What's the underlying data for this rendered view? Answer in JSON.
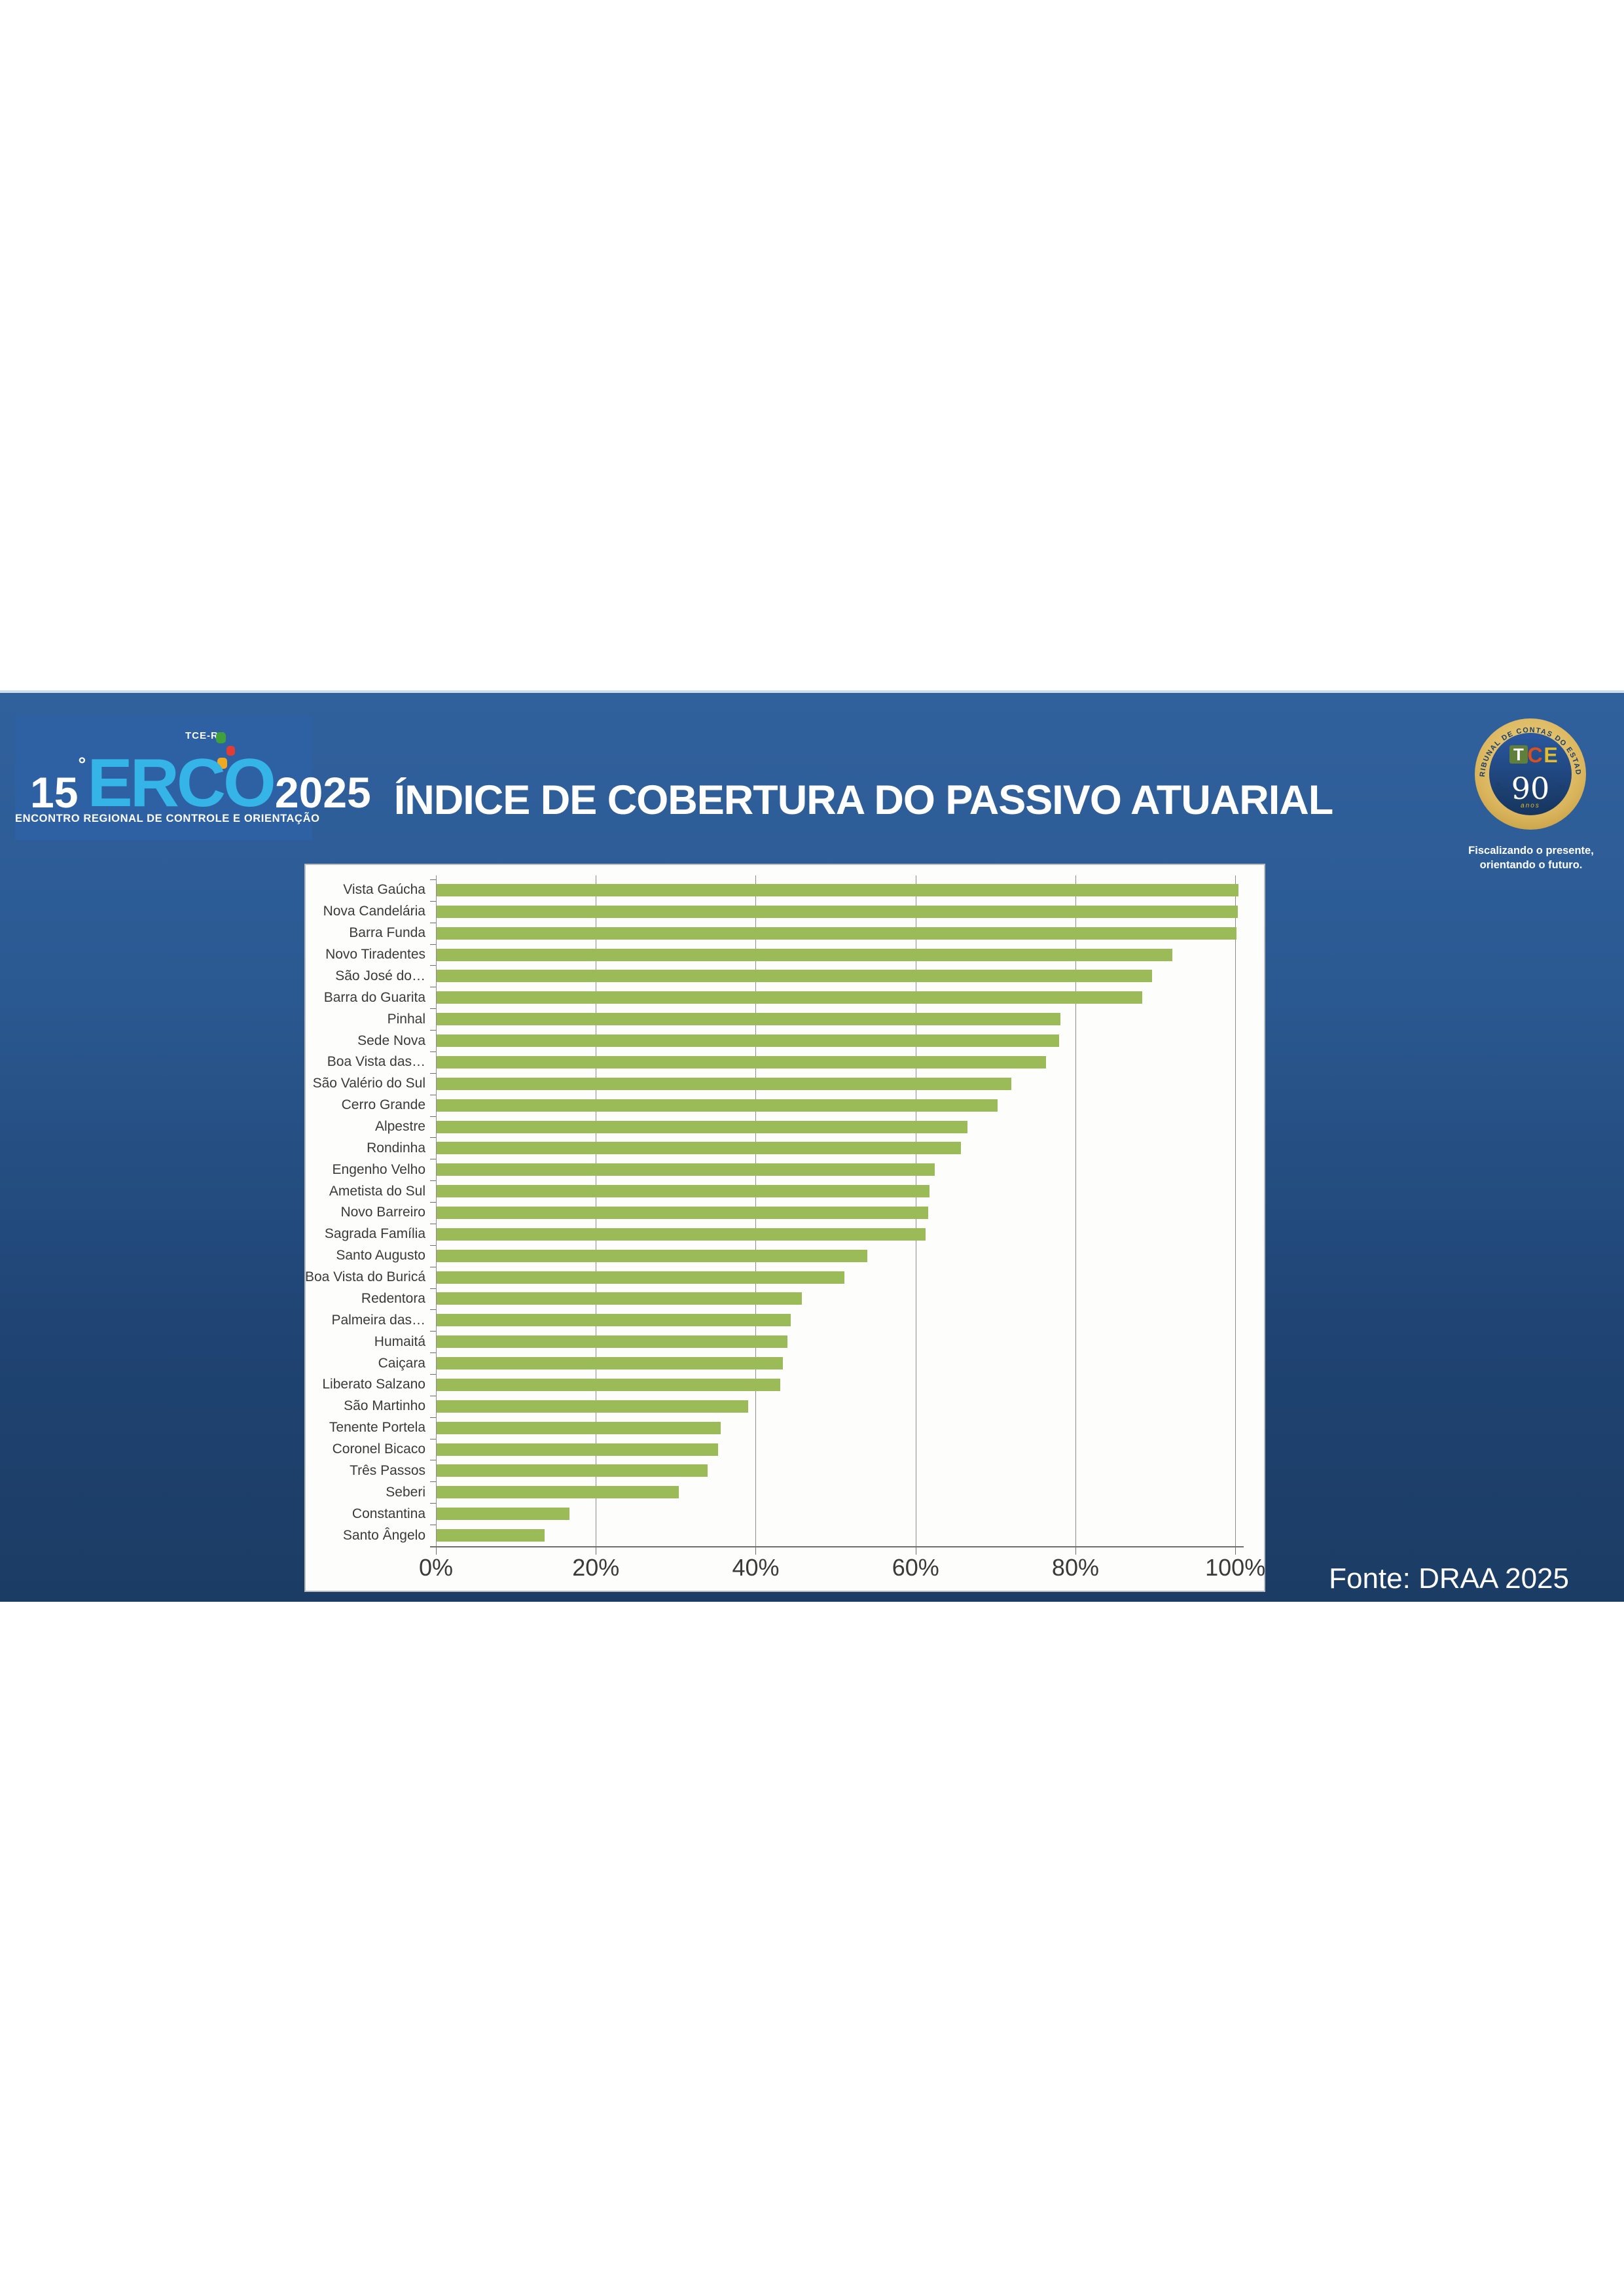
{
  "slide": {
    "title": "ÍNDICE DE COBERTURA DO PASSIVO ATUARIAL",
    "source_note": "Fonte: DRAA 2025",
    "colors": {
      "band_top": "#31619d",
      "band_bottom": "#1b3c64",
      "title_text": "#ffffff"
    }
  },
  "erco_logo": {
    "edition": "15",
    "degree_symbol": "°",
    "acronym": "ERCO",
    "year": "2025",
    "org": "TCE-RS",
    "tagline": "ENCONTRO REGIONAL DE CONTROLE E ORIENTAÇÃO",
    "colors": {
      "acronym": "#35b4e8",
      "box": "#2e61a3",
      "light_green": "#3fa03c",
      "light_red": "#e23d35",
      "light_yellow": "#f0a91e"
    }
  },
  "tce_badge": {
    "arc_top": "TRIBUNAL DE CONTAS DO ESTADO",
    "arc_bottom": "RIO GRANDE DO SUL",
    "tce_t": "T",
    "tce_c": "C",
    "tce_e": "E",
    "years": "90",
    "years_label": "anos",
    "slogan_line1": "Fiscalizando o presente,",
    "slogan_line2": "orientando o futuro.",
    "colors": {
      "gold": "#d9b45c",
      "navy": "#1c3e68"
    }
  },
  "chart_data": {
    "type": "bar",
    "orientation": "horizontal",
    "title": "",
    "xlabel": "",
    "ylabel": "",
    "xlim": [
      0,
      100
    ],
    "x_tick_labels": [
      "0%",
      "20%",
      "40%",
      "60%",
      "80%",
      "100%"
    ],
    "x_tick_values": [
      0,
      20,
      40,
      60,
      80,
      100
    ],
    "grid": "vertical",
    "legend": "none",
    "unit": "%",
    "bar_color": "#9bba58",
    "categories": [
      "Vista Gaúcha",
      "Nova Candelária",
      "Barra Funda",
      "Novo Tiradentes",
      "São José do…",
      "Barra do Guarita",
      "Pinhal",
      "Sede Nova",
      "Boa Vista das…",
      "São Valério do Sul",
      "Cerro Grande",
      "Alpestre",
      "Rondinha",
      "Engenho Velho",
      "Ametista do Sul",
      "Novo Barreiro",
      "Sagrada Família",
      "Santo Augusto",
      "Boa Vista do Buricá",
      "Redentora",
      "Palmeira das…",
      "Humaitá",
      "Caiçara",
      "Liberato Salzano",
      "São Martinho",
      "Tenente Portela",
      "Coronel Bicaco",
      "Três Passos",
      "Seberi",
      "Constantina",
      "Santo Ângelo"
    ],
    "values": [
      100.3,
      100.2,
      100.1,
      92.0,
      89.5,
      88.3,
      78.0,
      77.9,
      76.2,
      71.9,
      70.2,
      66.4,
      65.6,
      62.3,
      61.7,
      61.5,
      61.2,
      53.9,
      51.0,
      45.7,
      44.3,
      43.9,
      43.3,
      43.0,
      39.0,
      35.5,
      35.2,
      33.9,
      30.3,
      16.6,
      13.5
    ]
  }
}
